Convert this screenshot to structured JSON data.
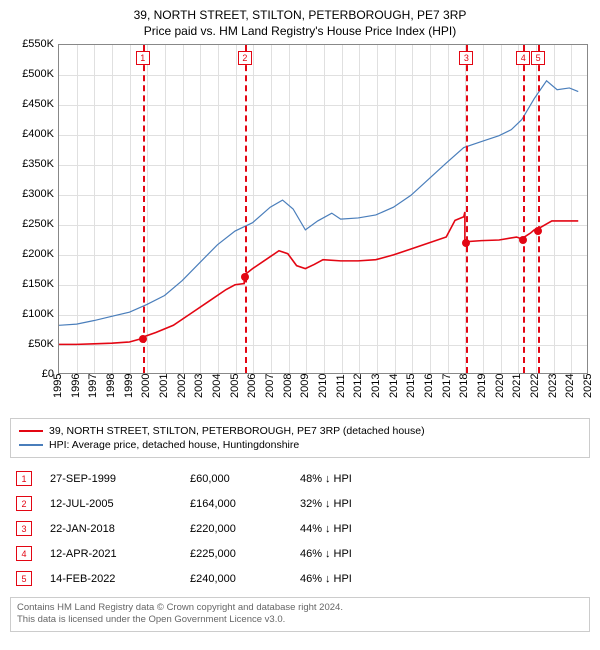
{
  "title": "39, NORTH STREET, STILTON, PETERBOROUGH, PE7 3RP",
  "subtitle": "Price paid vs. HM Land Registry's House Price Index (HPI)",
  "chart": {
    "type": "line",
    "background_color": "#ffffff",
    "grid_color": "#e0e0e0",
    "border_color": "#888888",
    "ylim": [
      0,
      550000
    ],
    "ytick_step": 50000,
    "ytick_labels": [
      "£0",
      "£50K",
      "£100K",
      "£150K",
      "£200K",
      "£250K",
      "£300K",
      "£350K",
      "£400K",
      "£450K",
      "£500K",
      "£550K"
    ],
    "xlim": [
      1995,
      2025
    ],
    "xticks": [
      1995,
      1996,
      1997,
      1998,
      1999,
      2000,
      2001,
      2002,
      2003,
      2004,
      2005,
      2006,
      2007,
      2008,
      2009,
      2010,
      2011,
      2012,
      2013,
      2014,
      2015,
      2016,
      2017,
      2018,
      2019,
      2020,
      2021,
      2022,
      2023,
      2024,
      2025
    ],
    "series": [
      {
        "name": "price_paid",
        "color": "#e30613",
        "stroke_width": 1.6,
        "points": [
          [
            1995.0,
            48000
          ],
          [
            1996.0,
            48000
          ],
          [
            1997.0,
            49000
          ],
          [
            1998.0,
            50000
          ],
          [
            1999.0,
            52000
          ],
          [
            1999.74,
            58000
          ],
          [
            1999.74,
            60000
          ],
          [
            2000.5,
            68000
          ],
          [
            2001.5,
            80000
          ],
          [
            2002.5,
            100000
          ],
          [
            2003.5,
            120000
          ],
          [
            2004.5,
            140000
          ],
          [
            2005.0,
            148000
          ],
          [
            2005.52,
            150000
          ],
          [
            2005.52,
            164000
          ],
          [
            2006.0,
            175000
          ],
          [
            2007.0,
            195000
          ],
          [
            2007.5,
            205000
          ],
          [
            2008.0,
            200000
          ],
          [
            2008.5,
            180000
          ],
          [
            2009.0,
            175000
          ],
          [
            2009.5,
            182000
          ],
          [
            2010.0,
            190000
          ],
          [
            2011.0,
            188000
          ],
          [
            2012.0,
            188000
          ],
          [
            2013.0,
            190000
          ],
          [
            2014.0,
            198000
          ],
          [
            2015.0,
            208000
          ],
          [
            2016.0,
            218000
          ],
          [
            2017.0,
            228000
          ],
          [
            2017.5,
            256000
          ],
          [
            2018.0,
            262000
          ],
          [
            2018.06,
            270000
          ],
          [
            2018.06,
            220000
          ],
          [
            2019.0,
            222000
          ],
          [
            2020.0,
            223000
          ],
          [
            2021.0,
            228000
          ],
          [
            2021.28,
            225000
          ],
          [
            2021.28,
            225000
          ],
          [
            2021.8,
            235000
          ],
          [
            2022.0,
            240000
          ],
          [
            2022.12,
            240000
          ],
          [
            2022.12,
            240000
          ],
          [
            2023.0,
            255000
          ],
          [
            2024.0,
            255000
          ],
          [
            2024.5,
            255000
          ]
        ]
      },
      {
        "name": "hpi",
        "color": "#4a7ebb",
        "stroke_width": 1.2,
        "points": [
          [
            1995.0,
            80000
          ],
          [
            1996.0,
            82000
          ],
          [
            1997.0,
            88000
          ],
          [
            1998.0,
            95000
          ],
          [
            1999.0,
            102000
          ],
          [
            2000.0,
            115000
          ],
          [
            2001.0,
            130000
          ],
          [
            2002.0,
            155000
          ],
          [
            2003.0,
            185000
          ],
          [
            2004.0,
            215000
          ],
          [
            2005.0,
            238000
          ],
          [
            2006.0,
            252000
          ],
          [
            2007.0,
            278000
          ],
          [
            2007.7,
            290000
          ],
          [
            2008.3,
            275000
          ],
          [
            2009.0,
            240000
          ],
          [
            2009.7,
            255000
          ],
          [
            2010.5,
            268000
          ],
          [
            2011.0,
            258000
          ],
          [
            2012.0,
            260000
          ],
          [
            2013.0,
            265000
          ],
          [
            2014.0,
            278000
          ],
          [
            2015.0,
            298000
          ],
          [
            2016.0,
            325000
          ],
          [
            2017.0,
            352000
          ],
          [
            2018.0,
            378000
          ],
          [
            2019.0,
            388000
          ],
          [
            2020.0,
            398000
          ],
          [
            2020.7,
            408000
          ],
          [
            2021.3,
            425000
          ],
          [
            2022.0,
            460000
          ],
          [
            2022.7,
            490000
          ],
          [
            2023.3,
            475000
          ],
          [
            2024.0,
            478000
          ],
          [
            2024.5,
            472000
          ]
        ]
      }
    ],
    "markers": [
      {
        "idx": "1",
        "year": 1999.74,
        "price": 60000,
        "color": "#e30613"
      },
      {
        "idx": "2",
        "year": 2005.52,
        "price": 164000,
        "color": "#e30613"
      },
      {
        "idx": "3",
        "year": 2018.06,
        "price": 220000,
        "color": "#e30613"
      },
      {
        "idx": "4",
        "year": 2021.28,
        "price": 225000,
        "color": "#e30613"
      },
      {
        "idx": "5",
        "year": 2022.12,
        "price": 240000,
        "color": "#e30613"
      }
    ]
  },
  "legend": [
    {
      "color": "#e30613",
      "label": "39, NORTH STREET, STILTON, PETERBOROUGH, PE7 3RP (detached house)"
    },
    {
      "color": "#4a7ebb",
      "label": "HPI: Average price, detached house, Huntingdonshire"
    }
  ],
  "table": {
    "marker_color": "#e30613",
    "hpi_text": "HPI",
    "rows": [
      {
        "idx": "1",
        "date": "27-SEP-1999",
        "price": "£60,000",
        "diff": "48%"
      },
      {
        "idx": "2",
        "date": "12-JUL-2005",
        "price": "£164,000",
        "diff": "32%"
      },
      {
        "idx": "3",
        "date": "22-JAN-2018",
        "price": "£220,000",
        "diff": "44%"
      },
      {
        "idx": "4",
        "date": "12-APR-2021",
        "price": "£225,000",
        "diff": "46%"
      },
      {
        "idx": "5",
        "date": "14-FEB-2022",
        "price": "£240,000",
        "diff": "46%"
      }
    ]
  },
  "footer": {
    "line1": "Contains HM Land Registry data © Crown copyright and database right 2024.",
    "line2": "This data is licensed under the Open Government Licence v3.0."
  }
}
